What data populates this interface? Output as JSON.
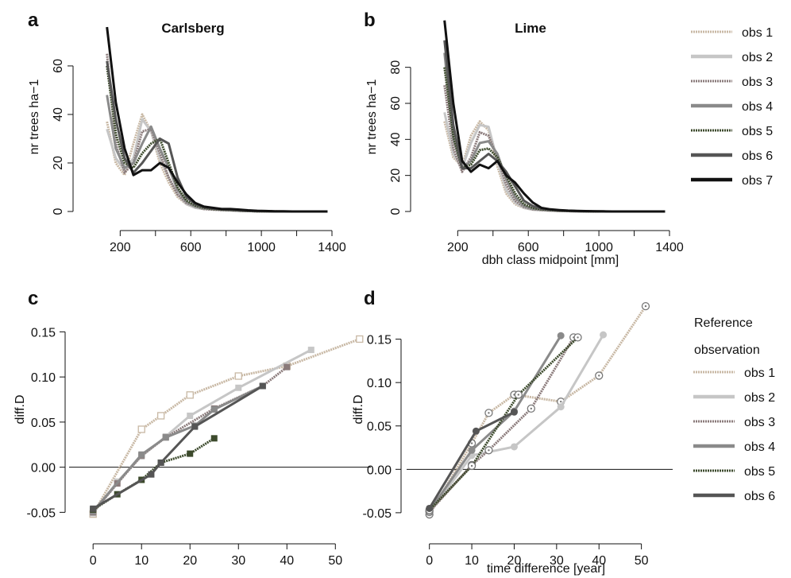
{
  "line_styles": {
    "obs 1": {
      "color": "#c8b8a4",
      "width": 3,
      "dash": "2,1"
    },
    "obs 2": {
      "color": "#c6c6c6",
      "width": 3,
      "dash": ""
    },
    "obs 3": {
      "color": "#8a7a7a",
      "width": 3,
      "dash": "2,1"
    },
    "obs 4": {
      "color": "#8a8a8a",
      "width": 3,
      "dash": ""
    },
    "obs 5": {
      "color": "#3c4a2c",
      "width": 3,
      "dash": "2,1"
    },
    "obs 6": {
      "color": "#555555",
      "width": 3,
      "dash": ""
    },
    "obs 7": {
      "color": "#111111",
      "width": 3,
      "dash": ""
    }
  },
  "top_legend": {
    "entries": [
      "obs 1",
      "obs 2",
      "obs 3",
      "obs 4",
      "obs 5",
      "obs 6",
      "obs 7"
    ]
  },
  "bottom_legend": {
    "title_line1": "Reference",
    "title_line2": "observation",
    "entries": [
      "obs 1",
      "obs 2",
      "obs 3",
      "obs 4",
      "obs 5",
      "obs 6"
    ]
  },
  "chart_data": [
    {
      "panel": "a",
      "type": "line",
      "title": "Carlsberg",
      "xlabel": "",
      "ylabel": "nr trees ha−1",
      "xlim": [
        50,
        1400
      ],
      "ylim": [
        0,
        78
      ],
      "xticks": [
        "200",
        "600",
        "1000",
        "1400"
      ],
      "xtick_values": [
        200,
        600,
        1000,
        1400
      ],
      "xminor": [
        400,
        800,
        1200
      ],
      "yticks": [
        "0",
        "20",
        "40",
        "60"
      ],
      "ytick_values": [
        0,
        20,
        40,
        60
      ],
      "x": [
        125,
        175,
        225,
        275,
        325,
        375,
        425,
        475,
        525,
        575,
        625,
        675,
        725,
        775,
        825,
        875,
        925,
        975,
        1025,
        1075,
        1125,
        1175,
        1225,
        1275,
        1325,
        1375
      ],
      "series": [
        {
          "style": "obs 1",
          "values": [
            37,
            20,
            15,
            28,
            40,
            33,
            20,
            12,
            6,
            3,
            1.5,
            1,
            1,
            0.8,
            0.5,
            0.3,
            0.2,
            0.2,
            0.1,
            0.1,
            0,
            0,
            0,
            0,
            0,
            0
          ]
        },
        {
          "style": "obs 2",
          "values": [
            34,
            22,
            17,
            22,
            38,
            33,
            22,
            14,
            7,
            3,
            1.5,
            1,
            0.8,
            0.6,
            0.5,
            0.3,
            0.2,
            0.1,
            0.1,
            0,
            0,
            0,
            0,
            0,
            0,
            0
          ]
        },
        {
          "style": "obs 3",
          "values": [
            65,
            28,
            16,
            20,
            33,
            34,
            24,
            14,
            7,
            3.5,
            2,
            1,
            0.8,
            0.6,
            0.5,
            0.3,
            0.2,
            0.1,
            0.1,
            0,
            0,
            0,
            0,
            0,
            0,
            0
          ]
        },
        {
          "style": "obs 4",
          "values": [
            48,
            26,
            18,
            20,
            28,
            35,
            26,
            18,
            9,
            4,
            2,
            1.2,
            1,
            0.7,
            0.5,
            0.3,
            0.2,
            0.1,
            0.1,
            0,
            0,
            0,
            0,
            0,
            0,
            0
          ]
        },
        {
          "style": "obs 5",
          "values": [
            60,
            32,
            20,
            18,
            24,
            28,
            30,
            20,
            10,
            4.5,
            2.5,
            1.5,
            1,
            0.8,
            0.6,
            0.4,
            0.2,
            0.1,
            0.1,
            0,
            0,
            0,
            0,
            0,
            0,
            0
          ]
        },
        {
          "style": "obs 6",
          "values": [
            62,
            38,
            22,
            16,
            20,
            25,
            30,
            28,
            14,
            6,
            3,
            1.8,
            1.2,
            0.9,
            0.7,
            0.5,
            0.3,
            0.2,
            0.1,
            0,
            0,
            0,
            0,
            0,
            0,
            0
          ]
        },
        {
          "style": "obs 7",
          "values": [
            76,
            45,
            26,
            15,
            17,
            17,
            20,
            18,
            12,
            7,
            3.5,
            2,
            1.5,
            1,
            1,
            0.8,
            0.5,
            0.3,
            0.2,
            0.1,
            0.1,
            0,
            0,
            0,
            0,
            0
          ]
        }
      ]
    },
    {
      "panel": "b",
      "type": "line",
      "title": "Lime",
      "xlabel": "dbh class midpoint [mm]",
      "ylabel": "nr trees ha−1",
      "xlim": [
        50,
        1400
      ],
      "ylim": [
        0,
        105
      ],
      "xticks": [
        "200",
        "600",
        "1000",
        "1400"
      ],
      "xtick_values": [
        200,
        600,
        1000,
        1400
      ],
      "xminor": [
        400,
        800,
        1200
      ],
      "yticks": [
        "0",
        "20",
        "40",
        "60",
        "80"
      ],
      "ytick_values": [
        0,
        20,
        40,
        60,
        80
      ],
      "x": [
        125,
        175,
        225,
        275,
        325,
        375,
        425,
        475,
        525,
        575,
        625,
        675,
        725,
        775,
        825,
        875,
        925,
        975,
        1025,
        1075,
        1125,
        1175,
        1225,
        1275,
        1325,
        1375
      ],
      "series": [
        {
          "style": "obs 1",
          "values": [
            50,
            30,
            25,
            42,
            50,
            45,
            25,
            10,
            4,
            2,
            1,
            0.8,
            0.5,
            0.3,
            0.2,
            0.1,
            0,
            0,
            0,
            0,
            0,
            0,
            0,
            0,
            0,
            0
          ]
        },
        {
          "style": "obs 2",
          "values": [
            55,
            32,
            24,
            38,
            48,
            47,
            28,
            12,
            5,
            2,
            1,
            0.8,
            0.5,
            0.3,
            0.2,
            0.1,
            0,
            0,
            0,
            0,
            0,
            0,
            0,
            0,
            0,
            0
          ]
        },
        {
          "style": "obs 3",
          "values": [
            70,
            35,
            22,
            30,
            44,
            42,
            30,
            15,
            6,
            2.5,
            1.2,
            0.8,
            0.5,
            0.3,
            0.2,
            0.1,
            0,
            0,
            0,
            0,
            0,
            0,
            0,
            0,
            0,
            0
          ]
        },
        {
          "style": "obs 4",
          "values": [
            88,
            40,
            24,
            28,
            38,
            39,
            32,
            18,
            8,
            3,
            1.5,
            1,
            0.6,
            0.4,
            0.2,
            0.1,
            0,
            0,
            0,
            0,
            0,
            0,
            0,
            0,
            0,
            0
          ]
        },
        {
          "style": "obs 5",
          "values": [
            80,
            42,
            24,
            26,
            34,
            35,
            30,
            20,
            10,
            4,
            2,
            1.2,
            0.8,
            0.5,
            0.3,
            0.2,
            0.1,
            0,
            0,
            0,
            0,
            0,
            0,
            0,
            0,
            0
          ]
        },
        {
          "style": "obs 6",
          "values": [
            95,
            48,
            24,
            24,
            28,
            32,
            28,
            22,
            14,
            6,
            3,
            1.5,
            1,
            0.6,
            0.4,
            0.2,
            0.1,
            0.1,
            0,
            0,
            0,
            0,
            0,
            0,
            0,
            0
          ]
        },
        {
          "style": "obs 7",
          "values": [
            106,
            60,
            28,
            22,
            26,
            24,
            28,
            20,
            16,
            10,
            5,
            2,
            1.2,
            0.8,
            0.5,
            0.3,
            0.2,
            0.1,
            0.1,
            0,
            0,
            0,
            0,
            0,
            0,
            0
          ]
        }
      ]
    },
    {
      "panel": "c",
      "type": "line",
      "title": "",
      "xlabel": "",
      "ylabel": "diff.D",
      "xlim": [
        -2,
        57
      ],
      "ylim": [
        -0.062,
        0.19
      ],
      "xticks": [
        "0",
        "10",
        "20",
        "30",
        "40",
        "50"
      ],
      "xtick_values": [
        0,
        10,
        20,
        30,
        40,
        50
      ],
      "yticks": [
        "-0.05",
        "0.00",
        "0.05",
        "0.10",
        "0.15"
      ],
      "ytick_values": [
        -0.05,
        0,
        0.05,
        0.1,
        0.15
      ],
      "hline": 0,
      "series": [
        {
          "style": "obs 1",
          "marker": "open-square",
          "points": [
            [
              0,
              -0.052
            ],
            [
              10,
              0.042
            ],
            [
              14,
              0.057
            ],
            [
              20,
              0.08
            ],
            [
              30,
              0.101
            ],
            [
              40,
              0.112
            ],
            [
              55,
              0.142
            ]
          ]
        },
        {
          "style": "obs 2",
          "marker": "square",
          "points": [
            [
              0,
              -0.051
            ],
            [
              5,
              -0.016
            ],
            [
              10,
              0.012
            ],
            [
              15,
              0.034
            ],
            [
              20,
              0.057
            ],
            [
              30,
              0.088
            ],
            [
              45,
              0.13
            ]
          ]
        },
        {
          "style": "obs 3",
          "marker": "square",
          "points": [
            [
              0,
              -0.05
            ],
            [
              5,
              -0.018
            ],
            [
              10,
              0.013
            ],
            [
              15,
              0.033
            ],
            [
              25,
              0.065
            ],
            [
              35,
              0.09
            ],
            [
              40,
              0.111
            ]
          ]
        },
        {
          "style": "obs 4",
          "marker": "square",
          "points": [
            [
              0,
              -0.049
            ],
            [
              10,
              0.014
            ],
            [
              15,
              0.033
            ],
            [
              21,
              0.046
            ],
            [
              25,
              0.064
            ],
            [
              35,
              0.09
            ]
          ]
        },
        {
          "style": "obs 5",
          "marker": "square",
          "points": [
            [
              0,
              -0.047
            ],
            [
              5,
              -0.03
            ],
            [
              10,
              -0.014
            ],
            [
              14,
              0.005
            ],
            [
              20,
              0.015
            ],
            [
              25,
              0.032
            ]
          ]
        },
        {
          "style": "obs 6",
          "marker": "square",
          "points": [
            [
              0,
              -0.046
            ],
            [
              12,
              -0.008
            ],
            [
              14,
              0.005
            ],
            [
              21,
              0.045
            ],
            [
              35,
              0.09
            ]
          ]
        }
      ]
    },
    {
      "panel": "d",
      "type": "line",
      "title": "",
      "xlabel": "time difference [year]",
      "ylabel": "diff.D",
      "xlim": [
        -2,
        57
      ],
      "ylim": [
        -0.062,
        0.2
      ],
      "xticks": [
        "0",
        "10",
        "20",
        "30",
        "40",
        "50"
      ],
      "xtick_values": [
        0,
        10,
        20,
        30,
        40,
        50
      ],
      "yticks": [
        "-0.05",
        "0.00",
        "0.05",
        "0.10",
        "0.15"
      ],
      "ytick_values": [
        -0.05,
        0,
        0.05,
        0.1,
        0.15
      ],
      "hline": 0,
      "series": [
        {
          "style": "obs 1",
          "marker": "open-circle",
          "points": [
            [
              0,
              -0.052
            ],
            [
              10,
              0.03
            ],
            [
              14,
              0.065
            ],
            [
              20,
              0.086
            ],
            [
              31,
              0.078
            ],
            [
              40,
              0.108
            ],
            [
              51,
              0.188
            ]
          ]
        },
        {
          "style": "obs 2",
          "marker": "circle",
          "points": [
            [
              0,
              -0.05
            ],
            [
              10,
              0.016
            ],
            [
              20,
              0.026
            ],
            [
              31,
              0.072
            ],
            [
              41,
              0.155
            ]
          ]
        },
        {
          "style": "obs 3",
          "marker": "open-circle",
          "points": [
            [
              0,
              -0.049
            ],
            [
              10,
              0.005
            ],
            [
              14,
              0.022
            ],
            [
              24,
              0.07
            ],
            [
              34,
              0.152
            ]
          ]
        },
        {
          "style": "obs 4",
          "marker": "circle",
          "points": [
            [
              0,
              -0.048
            ],
            [
              10,
              0.022
            ],
            [
              20,
              0.067
            ],
            [
              31,
              0.154
            ]
          ]
        },
        {
          "style": "obs 5",
          "marker": "open-circle",
          "points": [
            [
              0,
              -0.047
            ],
            [
              10,
              0.004
            ],
            [
              21,
              0.086
            ],
            [
              35,
              0.152
            ]
          ]
        },
        {
          "style": "obs 6",
          "marker": "circle",
          "points": [
            [
              0,
              -0.045
            ],
            [
              11,
              0.044
            ],
            [
              20,
              0.066
            ]
          ]
        }
      ]
    }
  ]
}
